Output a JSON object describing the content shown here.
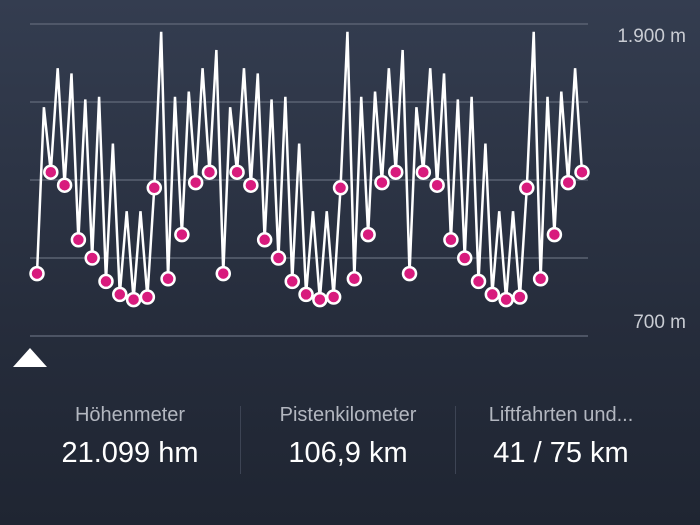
{
  "chart_data": {
    "type": "line",
    "title": "",
    "xlabel": "",
    "ylabel": "",
    "ylim": [
      700,
      1900
    ],
    "y_tick_labels": [
      "1.900 m",
      "700 m"
    ],
    "gridlines": [
      700,
      1000,
      1300,
      1600,
      1900
    ],
    "grid": true,
    "line_color": "#ffffff",
    "marker_color": "#d81b7d",
    "marker_stroke": "#ffffff",
    "points": [
      [
        940,
        1
      ],
      [
        1580,
        0
      ],
      [
        1330,
        1
      ],
      [
        1730,
        0
      ],
      [
        1280,
        1
      ],
      [
        1710,
        0
      ],
      [
        1070,
        1
      ],
      [
        1610,
        0
      ],
      [
        1000,
        1
      ],
      [
        1620,
        0
      ],
      [
        910,
        1
      ],
      [
        1440,
        0
      ],
      [
        860,
        1
      ],
      [
        1180,
        0
      ],
      [
        840,
        1
      ],
      [
        1180,
        0
      ],
      [
        850,
        1
      ],
      [
        1270,
        1
      ],
      [
        1870,
        0
      ],
      [
        920,
        1
      ],
      [
        1620,
        0
      ],
      [
        1090,
        1
      ],
      [
        1640,
        0
      ],
      [
        1290,
        1
      ],
      [
        1730,
        0
      ],
      [
        1330,
        1
      ],
      [
        1800,
        0
      ],
      [
        940,
        1
      ],
      [
        1580,
        0
      ],
      [
        1330,
        1
      ],
      [
        1730,
        0
      ],
      [
        1280,
        1
      ],
      [
        1710,
        0
      ],
      [
        1070,
        1
      ],
      [
        1610,
        0
      ],
      [
        1000,
        1
      ],
      [
        1620,
        0
      ],
      [
        910,
        1
      ],
      [
        1440,
        0
      ],
      [
        860,
        1
      ],
      [
        1180,
        0
      ],
      [
        840,
        1
      ],
      [
        1180,
        0
      ],
      [
        850,
        1
      ],
      [
        1270,
        1
      ],
      [
        1870,
        0
      ],
      [
        920,
        1
      ],
      [
        1620,
        0
      ],
      [
        1090,
        1
      ],
      [
        1640,
        0
      ],
      [
        1290,
        1
      ],
      [
        1730,
        0
      ],
      [
        1330,
        1
      ],
      [
        1800,
        0
      ],
      [
        940,
        1
      ],
      [
        1580,
        0
      ],
      [
        1330,
        1
      ],
      [
        1730,
        0
      ],
      [
        1280,
        1
      ],
      [
        1710,
        0
      ],
      [
        1070,
        1
      ],
      [
        1610,
        0
      ],
      [
        1000,
        1
      ],
      [
        1620,
        0
      ],
      [
        910,
        1
      ],
      [
        1440,
        0
      ],
      [
        860,
        1
      ],
      [
        1180,
        0
      ],
      [
        840,
        1
      ],
      [
        1180,
        0
      ],
      [
        850,
        1
      ],
      [
        1270,
        1
      ],
      [
        1870,
        0
      ],
      [
        920,
        1
      ],
      [
        1620,
        0
      ],
      [
        1090,
        1
      ],
      [
        1640,
        0
      ],
      [
        1290,
        1
      ],
      [
        1730,
        0
      ],
      [
        1330,
        1
      ]
    ]
  },
  "axis": {
    "top_label": "1.900 m",
    "bottom_label": "700 m"
  },
  "scrubber_icon": "triangle-up",
  "stats": [
    {
      "label": "Höhenmeter",
      "value": "21.099 hm"
    },
    {
      "label": "Pistenkilometer",
      "value": "106,9 km"
    },
    {
      "label": "Liftfahrten und...",
      "value": "41 / 75 km"
    }
  ]
}
